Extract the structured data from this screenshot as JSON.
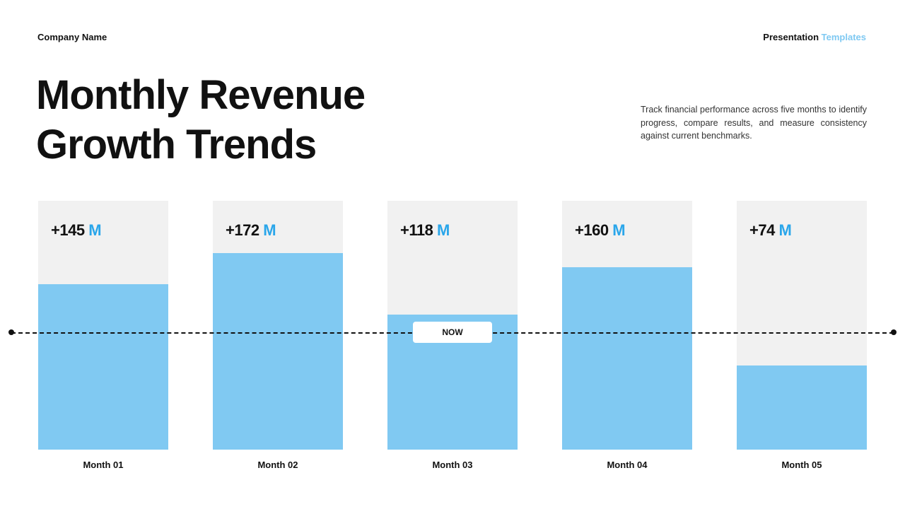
{
  "header": {
    "company": "Company Name",
    "brand_main": "Presentation",
    "brand_accent": "Templates"
  },
  "title_lines": [
    "Monthly Revenue",
    "Growth Trends"
  ],
  "description": "Track financial performance across five months to identify progress, compare results, and measure consistency against current benchmarks.",
  "colors": {
    "bar_fill": "#80c9f2",
    "bar_background": "#f1f1f1",
    "unit_accent": "#2aa6ea",
    "brand_accent": "#7fc9f2"
  },
  "chart_data": {
    "type": "bar",
    "categories": [
      "Month 01",
      "Month 02",
      "Month 03",
      "Month 04",
      "Month 05"
    ],
    "values": [
      145,
      172,
      118,
      160,
      74
    ],
    "value_labels": [
      "+145",
      "+172",
      "+118",
      "+160",
      "+74"
    ],
    "unit": "M",
    "ylim": [
      0,
      218
    ],
    "reference_line": {
      "value": 118,
      "label": "NOW"
    },
    "title": "",
    "xlabel": "",
    "ylabel": "",
    "grid": false,
    "legend": "none"
  }
}
